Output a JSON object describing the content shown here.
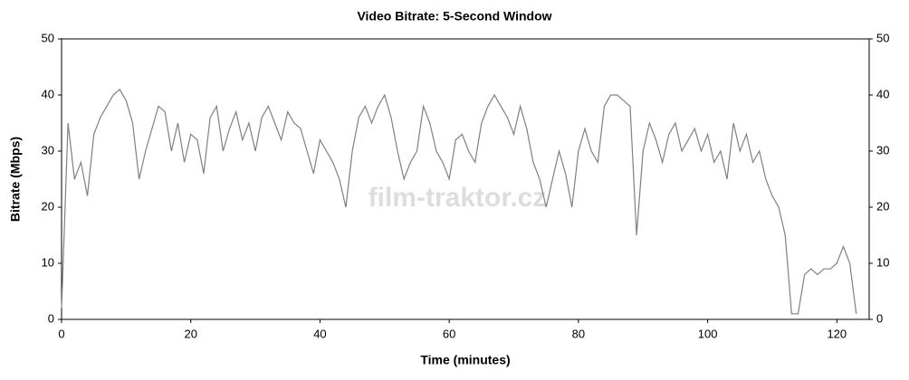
{
  "chart_data": {
    "type": "line",
    "title": "Video Bitrate: 5-Second Window",
    "x_label": "Time (minutes)",
    "y_label": "Bitrate (Mbps)",
    "watermark": "film-traktor.cz",
    "x": [
      0,
      1,
      2,
      3,
      4,
      5,
      6,
      7,
      8,
      9,
      10,
      11,
      12,
      13,
      14,
      15,
      16,
      17,
      18,
      19,
      20,
      21,
      22,
      23,
      24,
      25,
      26,
      27,
      28,
      29,
      30,
      31,
      32,
      33,
      34,
      35,
      36,
      37,
      38,
      39,
      40,
      41,
      42,
      43,
      44,
      45,
      46,
      47,
      48,
      49,
      50,
      51,
      52,
      53,
      54,
      55,
      56,
      57,
      58,
      59,
      60,
      61,
      62,
      63,
      64,
      65,
      66,
      67,
      68,
      69,
      70,
      71,
      72,
      73,
      74,
      75,
      76,
      77,
      78,
      79,
      80,
      81,
      82,
      83,
      84,
      85,
      86,
      87,
      88,
      89,
      90,
      91,
      92,
      93,
      94,
      95,
      96,
      97,
      98,
      99,
      100,
      101,
      102,
      103,
      104,
      105,
      106,
      107,
      108,
      109,
      110,
      111,
      112,
      113,
      114,
      115,
      116,
      117,
      118,
      119,
      120,
      121,
      122,
      123
    ],
    "series": [
      {
        "name": "Bitrate",
        "color": "#808080",
        "values": [
          2,
          35,
          25,
          28,
          22,
          33,
          36,
          38,
          40,
          41,
          39,
          35,
          25,
          30,
          34,
          38,
          37,
          30,
          35,
          28,
          33,
          32,
          26,
          36,
          38,
          30,
          34,
          37,
          32,
          35,
          30,
          36,
          38,
          35,
          32,
          37,
          35,
          34,
          30,
          26,
          32,
          30,
          28,
          25,
          20,
          30,
          36,
          38,
          35,
          38,
          40,
          36,
          30,
          25,
          28,
          30,
          38,
          35,
          30,
          28,
          25,
          32,
          33,
          30,
          28,
          35,
          38,
          40,
          38,
          36,
          33,
          38,
          34,
          28,
          25,
          20,
          25,
          30,
          26,
          20,
          30,
          34,
          30,
          28,
          38,
          40,
          40,
          39,
          38,
          15,
          30,
          35,
          32,
          28,
          33,
          35,
          30,
          32,
          34,
          30,
          33,
          28,
          30,
          25,
          35,
          30,
          33,
          28,
          30,
          25,
          22,
          20,
          15,
          1,
          1,
          8,
          9,
          8,
          9,
          9,
          10,
          13,
          10,
          1
        ]
      }
    ],
    "xlim": [
      0,
      125
    ],
    "xticks": [
      0,
      20,
      40,
      60,
      80,
      100,
      120
    ],
    "ylim": [
      0,
      50
    ],
    "yticks": [
      0,
      10,
      20,
      30,
      40,
      50
    ]
  }
}
